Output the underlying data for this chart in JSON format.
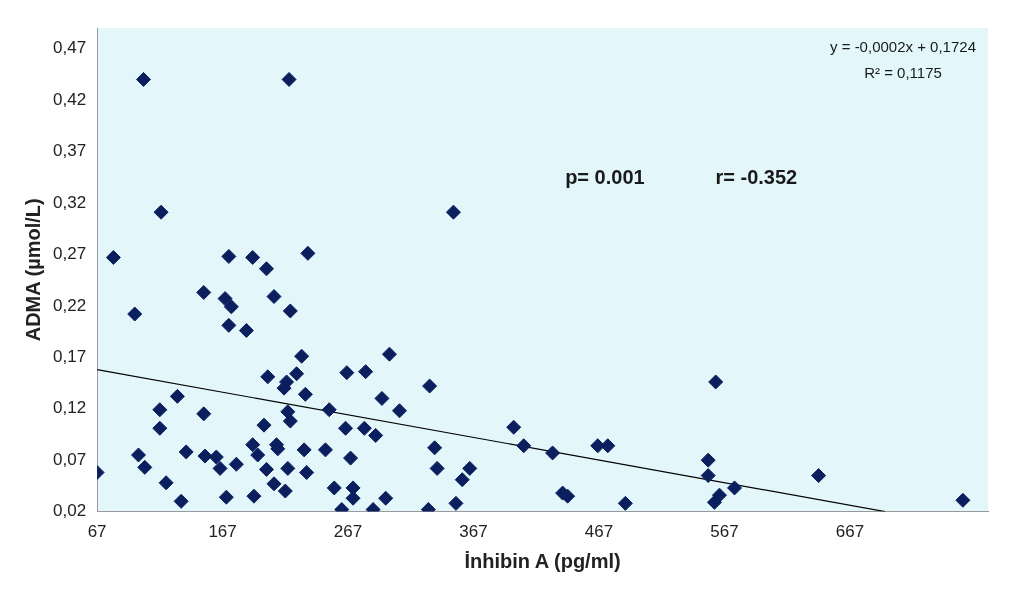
{
  "chart_data": {
    "type": "scatter",
    "xlabel": "İnhibin A (pg/ml)",
    "ylabel": "ADMA (µmol/L)",
    "xlim": [
      67,
      777
    ],
    "xticks": [
      67,
      167,
      267,
      367,
      467,
      567,
      667
    ],
    "ylim": [
      0.02,
      0.49
    ],
    "yticks": [
      {
        "value": 0.02,
        "label": "0,02"
      },
      {
        "value": 0.07,
        "label": "0,07"
      },
      {
        "value": 0.12,
        "label": "0,12"
      },
      {
        "value": 0.17,
        "label": "0,17"
      },
      {
        "value": 0.22,
        "label": "0,22"
      },
      {
        "value": 0.27,
        "label": "0,27"
      },
      {
        "value": 0.32,
        "label": "0,32"
      },
      {
        "value": 0.37,
        "label": "0,37"
      },
      {
        "value": 0.42,
        "label": "0,42"
      },
      {
        "value": 0.47,
        "label": "0,47"
      }
    ],
    "grid": false,
    "legend": false,
    "annotations": [
      "p= 0.001",
      "r= -0.352",
      "y = -0,0002x + 0,1724",
      "R² = 0,1175"
    ],
    "series": [
      {
        "color": "#0b1f5e",
        "marker": "diamond",
        "x": [
          67,
          80,
          104,
          97,
          100,
          105,
          118,
          117,
          117,
          122,
          131,
          134,
          138,
          152,
          152,
          153,
          162,
          165,
          169,
          174,
          172,
          172,
          170,
          178,
          186,
          191,
          191,
          192,
          195,
          202,
          200,
          203,
          202,
          208,
          210,
          211,
          208,
          220,
          218,
          216,
          221,
          219,
          221,
          219,
          217,
          226,
          230,
          235,
          233,
          232,
          234,
          249,
          252,
          256,
          262,
          265,
          266,
          269,
          271,
          271,
          281,
          280,
          287,
          289,
          294,
          297,
          300,
          308,
          331,
          332,
          336,
          338,
          351,
          353,
          358,
          364,
          399,
          407,
          430,
          438,
          442,
          466,
          474,
          488,
          554,
          554,
          559,
          563,
          560,
          575,
          642,
          757
        ],
        "values": [
          0.058,
          0.267,
          0.44,
          0.212,
          0.075,
          0.063,
          0.311,
          0.119,
          0.101,
          0.048,
          0.132,
          0.03,
          0.078,
          0.233,
          0.115,
          0.074,
          0.073,
          0.062,
          0.227,
          0.219,
          0.201,
          0.268,
          0.034,
          0.066,
          0.196,
          0.267,
          0.085,
          0.035,
          0.075,
          0.256,
          0.104,
          0.151,
          0.061,
          0.229,
          0.085,
          0.081,
          0.047,
          0.44,
          0.146,
          0.14,
          0.215,
          0.117,
          0.108,
          0.062,
          0.04,
          0.154,
          0.171,
          0.271,
          0.134,
          0.08,
          0.058,
          0.08,
          0.119,
          0.043,
          0.022,
          0.101,
          0.155,
          0.072,
          0.033,
          0.043,
          0.156,
          0.101,
          0.022,
          0.094,
          0.13,
          0.033,
          0.173,
          0.118,
          0.022,
          0.142,
          0.082,
          0.062,
          0.311,
          0.028,
          0.051,
          0.062,
          0.102,
          0.084,
          0.077,
          0.038,
          0.035,
          0.084,
          0.084,
          0.028,
          0.07,
          0.055,
          0.029,
          0.036,
          0.146,
          0.043,
          0.055,
          0.031
        ]
      },
      {
        "type": "line",
        "marker": "none",
        "color": "#000000",
        "x": [
          67,
          695
        ],
        "values": [
          0.158,
          0.02
        ]
      }
    ]
  }
}
